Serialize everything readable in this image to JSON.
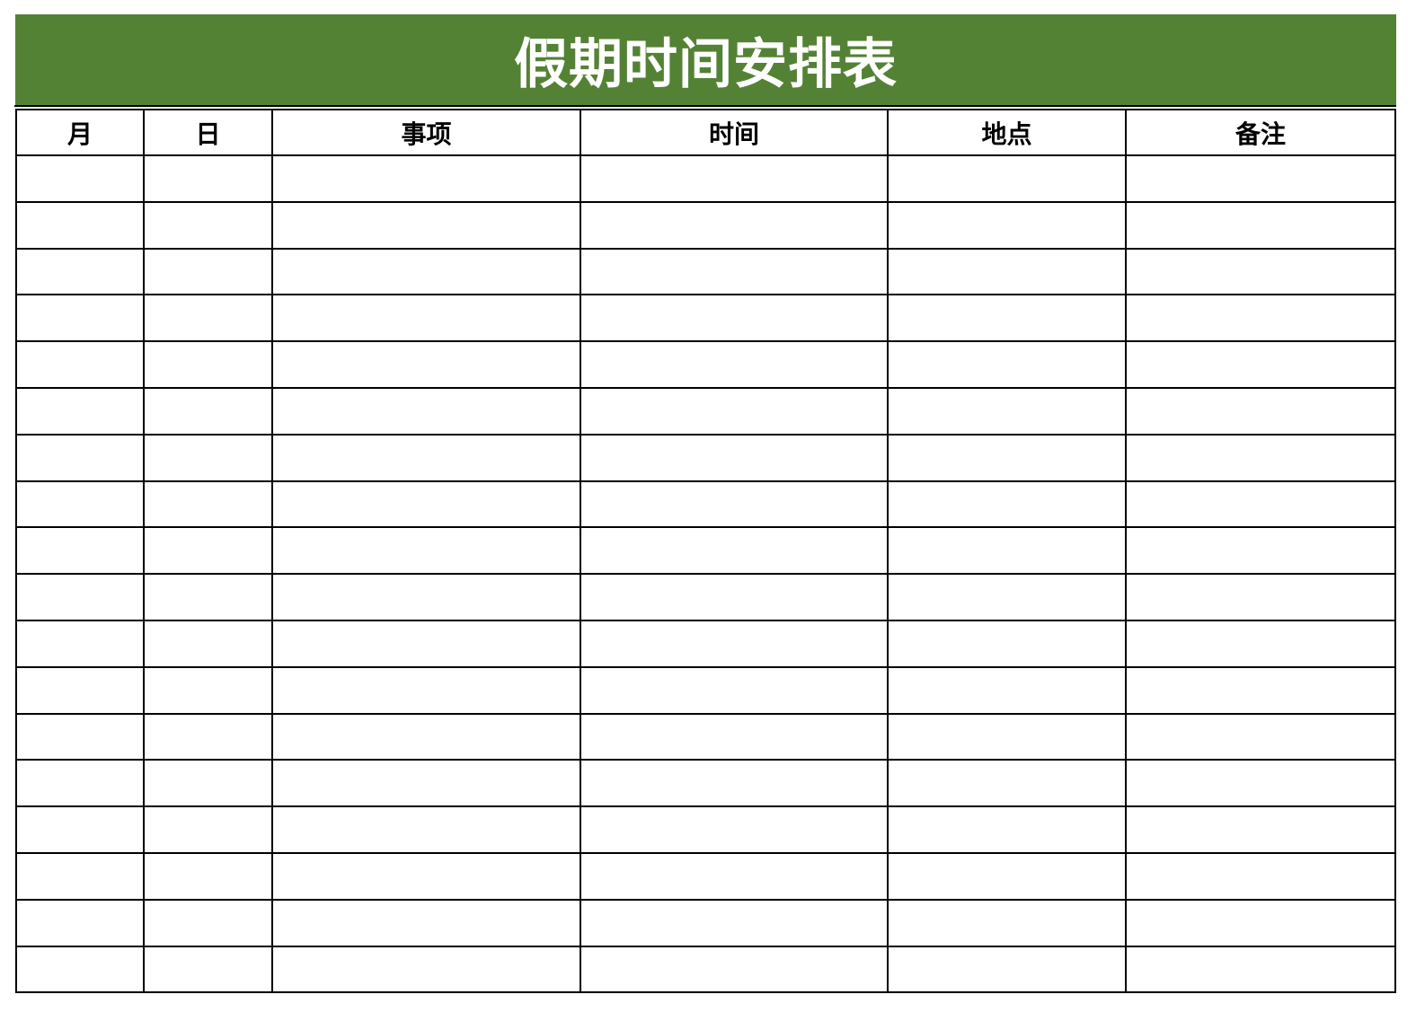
{
  "title": "假期时间安排表",
  "colors": {
    "title_background": "#548235",
    "title_text": "#ffffff",
    "grid": "#000000"
  },
  "table": {
    "headers": [
      "月",
      "日",
      "事项",
      "时间",
      "地点",
      "备注"
    ],
    "empty_row_count": 18
  }
}
